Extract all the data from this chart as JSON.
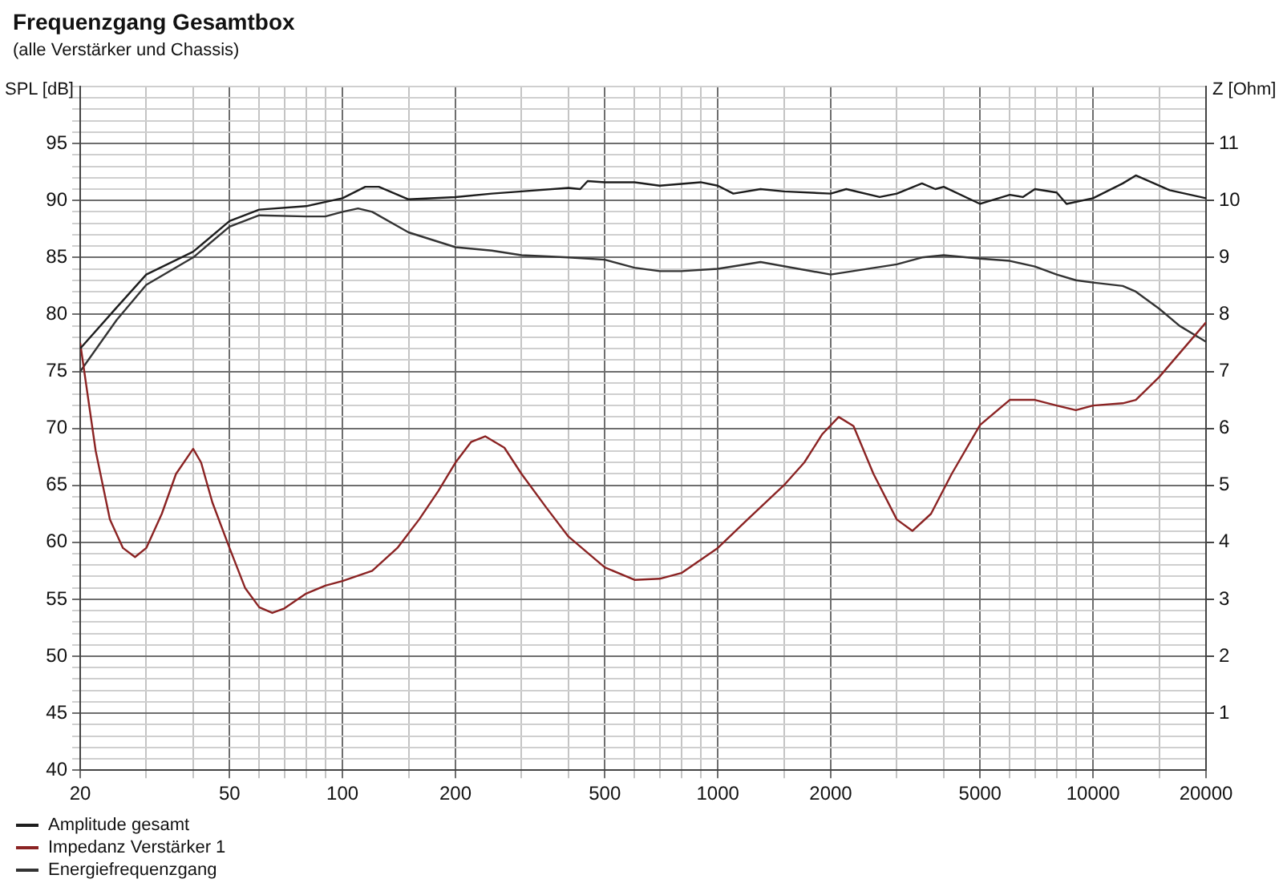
{
  "chart_data": {
    "type": "line",
    "title": "Frequenzgang Gesamtbox",
    "subtitle": "(alle Verstärker und Chassis)",
    "ylabel": "SPL [dB]",
    "y2label": "Z [Ohm]",
    "log": "x",
    "grid": true,
    "legend": "bottom left",
    "marker": "none",
    "line_style": "solid",
    "xlim": [
      20,
      20000
    ],
    "xticks": [
      20,
      {
        "value": 30,
        "label": null
      },
      {
        "value": 40,
        "label": null
      },
      50,
      {
        "value": 60,
        "label": null
      },
      {
        "value": 70,
        "label": null
      },
      {
        "value": 80,
        "label": null
      },
      {
        "value": 90,
        "label": null
      },
      100,
      {
        "value": 150,
        "label": null
      },
      200,
      {
        "value": 300,
        "label": null
      },
      {
        "value": 400,
        "label": null
      },
      500,
      {
        "value": 600,
        "label": null
      },
      {
        "value": 700,
        "label": null
      },
      {
        "value": 800,
        "label": null
      },
      {
        "value": 900,
        "label": null
      },
      1000,
      {
        "value": 1500,
        "label": null
      },
      2000,
      {
        "value": 3000,
        "label": null
      },
      {
        "value": 4000,
        "label": null
      },
      5000,
      {
        "value": 6000,
        "label": null
      },
      {
        "value": 7000,
        "label": null
      },
      {
        "value": 8000,
        "label": null
      },
      {
        "value": 9000,
        "label": null
      },
      10000,
      {
        "value": 15000,
        "label": null
      },
      20000
    ],
    "ylim": [
      40,
      100
    ],
    "yticks": [
      40,
      {
        "value": 41,
        "label": null
      },
      {
        "value": 42,
        "label": null
      },
      {
        "value": 43,
        "label": null
      },
      {
        "value": 44,
        "label": null
      },
      45,
      {
        "value": 46,
        "label": null
      },
      {
        "value": 47,
        "label": null
      },
      {
        "value": 48,
        "label": null
      },
      {
        "value": 49,
        "label": null
      },
      50,
      {
        "value": 51,
        "label": null
      },
      {
        "value": 52,
        "label": null
      },
      {
        "value": 53,
        "label": null
      },
      {
        "value": 54,
        "label": null
      },
      55,
      {
        "value": 56,
        "label": null
      },
      {
        "value": 57,
        "label": null
      },
      {
        "value": 58,
        "label": null
      },
      {
        "value": 59,
        "label": null
      },
      60,
      {
        "value": 61,
        "label": null
      },
      {
        "value": 62,
        "label": null
      },
      {
        "value": 63,
        "label": null
      },
      {
        "value": 64,
        "label": null
      },
      65,
      {
        "value": 66,
        "label": null
      },
      {
        "value": 67,
        "label": null
      },
      {
        "value": 68,
        "label": null
      },
      {
        "value": 69,
        "label": null
      },
      70,
      {
        "value": 71,
        "label": null
      },
      {
        "value": 72,
        "label": null
      },
      {
        "value": 73,
        "label": null
      },
      {
        "value": 74,
        "label": null
      },
      75,
      {
        "value": 76,
        "label": null
      },
      {
        "value": 77,
        "label": null
      },
      {
        "value": 78,
        "label": null
      },
      {
        "value": 79,
        "label": null
      },
      80,
      {
        "value": 81,
        "label": null
      },
      {
        "value": 82,
        "label": null
      },
      {
        "value": 83,
        "label": null
      },
      {
        "value": 84,
        "label": null
      },
      85,
      {
        "value": 86,
        "label": null
      },
      {
        "value": 87,
        "label": null
      },
      {
        "value": 88,
        "label": null
      },
      {
        "value": 89,
        "label": null
      },
      90,
      {
        "value": 91,
        "label": null
      },
      {
        "value": 92,
        "label": null
      },
      {
        "value": 93,
        "label": null
      },
      {
        "value": 94,
        "label": null
      },
      95,
      {
        "value": 96,
        "label": null
      },
      {
        "value": 97,
        "label": null
      },
      {
        "value": 98,
        "label": null
      },
      {
        "value": 99,
        "label": null
      },
      {
        "value": 100,
        "label": null
      }
    ],
    "y2lim": [
      0,
      12
    ],
    "y2ticks": [
      1,
      2,
      3,
      4,
      5,
      6,
      7,
      8,
      9,
      10,
      11
    ],
    "series": [
      {
        "name": "Amplitude gesamt",
        "color": "#1e1e1e",
        "x": [
          20,
          25,
          30,
          40,
          50,
          60,
          80,
          100,
          115,
          125,
          150,
          200,
          250,
          300,
          400,
          430,
          450,
          500,
          600,
          700,
          900,
          1000,
          1100,
          1300,
          1500,
          2000,
          2200,
          2700,
          3000,
          3500,
          3800,
          4000,
          5000,
          6000,
          6500,
          7000,
          8000,
          8500,
          10000,
          12000,
          13000,
          16000,
          20000
        ],
        "values": [
          77,
          80.6,
          83.5,
          85.5,
          88.2,
          89.2,
          89.5,
          90.2,
          91.2,
          91.2,
          90.1,
          90.3,
          90.6,
          90.8,
          91.1,
          91,
          91.7,
          91.6,
          91.6,
          91.3,
          91.6,
          91.3,
          90.6,
          91,
          90.8,
          90.6,
          91,
          90.3,
          90.6,
          91.5,
          91,
          91.2,
          89.7,
          90.5,
          90.3,
          91,
          90.7,
          89.7,
          90.2,
          91.5,
          92.2,
          90.9,
          90.2
        ]
      },
      {
        "name": "Impedanz Verstärker 1",
        "color": "#8b2323",
        "axis": "y2",
        "x": [
          20,
          22,
          24,
          26,
          28,
          30,
          33,
          36,
          40,
          42,
          45,
          50,
          55,
          60,
          65,
          70,
          80,
          90,
          100,
          120,
          140,
          160,
          180,
          200,
          220,
          240,
          270,
          300,
          350,
          400,
          500,
          600,
          700,
          800,
          1000,
          1200,
          1500,
          1700,
          1900,
          2100,
          2300,
          2600,
          3000,
          3300,
          3700,
          4200,
          5000,
          6000,
          7000,
          8000,
          9000,
          10000,
          12000,
          13000,
          15000,
          20000
        ],
        "values": [
          7.5,
          5.6,
          4.4,
          3.9,
          3.74,
          3.9,
          4.5,
          5.2,
          5.64,
          5.4,
          4.7,
          3.9,
          3.2,
          2.86,
          2.76,
          2.84,
          3.1,
          3.24,
          3.32,
          3.5,
          3.9,
          4.4,
          4.9,
          5.4,
          5.76,
          5.86,
          5.66,
          5.2,
          4.6,
          4.1,
          3.56,
          3.34,
          3.36,
          3.46,
          3.9,
          4.4,
          5,
          5.4,
          5.9,
          6.2,
          6.04,
          5.2,
          4.4,
          4.2,
          4.5,
          5.2,
          6.06,
          6.5,
          6.5,
          6.4,
          6.32,
          6.4,
          6.44,
          6.5,
          6.9,
          7.86
        ]
      },
      {
        "name": "Energiefrequenzgang",
        "color": "#333333",
        "x": [
          20,
          25,
          30,
          40,
          50,
          60,
          80,
          90,
          100,
          110,
          120,
          150,
          200,
          250,
          300,
          400,
          500,
          600,
          700,
          800,
          1000,
          1300,
          2000,
          3000,
          3500,
          4000,
          5000,
          6000,
          7000,
          8000,
          9000,
          10000,
          12000,
          13000,
          15000,
          17000,
          20000
        ],
        "values": [
          75,
          79.5,
          82.6,
          85,
          87.7,
          88.7,
          88.6,
          88.6,
          89,
          89.3,
          89,
          87.2,
          85.9,
          85.6,
          85.2,
          85,
          84.8,
          84.1,
          83.8,
          83.8,
          84,
          84.6,
          83.5,
          84.4,
          85,
          85.2,
          84.9,
          84.7,
          84.2,
          83.5,
          83,
          82.8,
          82.5,
          82,
          80.5,
          79,
          77.6
        ]
      }
    ]
  }
}
